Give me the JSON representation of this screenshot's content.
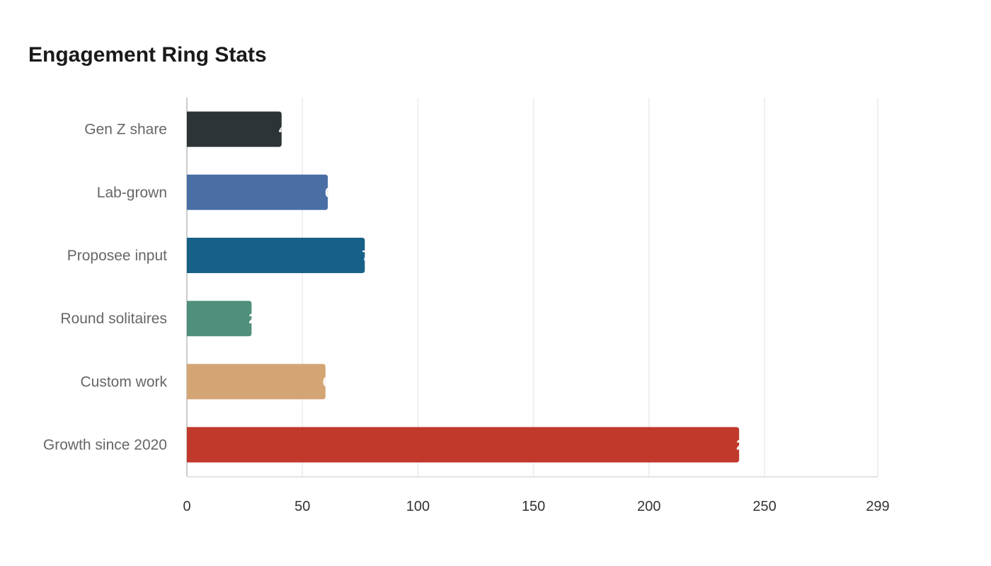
{
  "chart_data": {
    "type": "bar",
    "orientation": "horizontal",
    "title": "Engagement Ring Stats",
    "categories": [
      "Gen Z share",
      "Lab-grown",
      "Proposee input",
      "Round solitaires",
      "Custom work",
      "Growth since 2020"
    ],
    "values": [
      41,
      61,
      77,
      28,
      60,
      239
    ],
    "colors": [
      "#2d3436",
      "#4a6fa5",
      "#176087",
      "#4f8f7c",
      "#d4a574",
      "#c0392b"
    ],
    "xlim": [
      0,
      299
    ],
    "x_ticks": [
      "0",
      "50",
      "100",
      "150",
      "200",
      "250",
      "299"
    ],
    "x_tick_values": [
      0,
      50,
      100,
      150,
      200,
      250,
      299
    ],
    "grid": "vertical",
    "legend": "none"
  }
}
